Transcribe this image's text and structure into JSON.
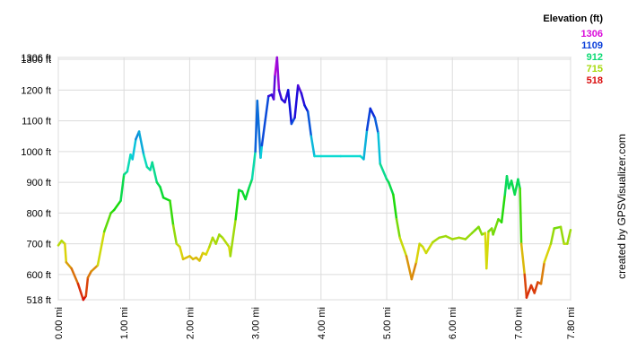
{
  "chart_data": {
    "type": "line",
    "credit": "created by GPSVisualizer.com",
    "legend": {
      "title": "Elevation (ft)",
      "values": [
        1306,
        1109,
        912,
        715,
        518
      ]
    },
    "color_range": [
      518,
      1306
    ],
    "grid": true,
    "xlim": [
      0,
      7.8
    ],
    "xticks": [
      {
        "value": 0,
        "label": "0.00 mi"
      },
      {
        "value": 1,
        "label": "1.00 mi"
      },
      {
        "value": 2,
        "label": "2.00 mi"
      },
      {
        "value": 3,
        "label": "3.00 mi"
      },
      {
        "value": 4,
        "label": "4.00 mi"
      },
      {
        "value": 5,
        "label": "5.00 mi"
      },
      {
        "value": 6,
        "label": "6.00 mi"
      },
      {
        "value": 7,
        "label": "7.00 mi"
      },
      {
        "value": 7.8,
        "label": "7.80 mi"
      }
    ],
    "ylim": [
      518,
      1306
    ],
    "yticks": [
      {
        "value": 518,
        "label": "518 ft"
      },
      {
        "value": 600,
        "label": "600 ft"
      },
      {
        "value": 700,
        "label": "700 ft"
      },
      {
        "value": 800,
        "label": "800 ft"
      },
      {
        "value": 900,
        "label": "900 ft"
      },
      {
        "value": 1000,
        "label": "1000 ft"
      },
      {
        "value": 1100,
        "label": "1100 ft"
      },
      {
        "value": 1200,
        "label": "1200 ft"
      },
      {
        "value": 1300,
        "label": "1300 ft"
      },
      {
        "value": 1306,
        "label": "1306 ft"
      }
    ],
    "x": [
      0,
      0.05,
      0.1,
      0.12,
      0.2,
      0.3,
      0.38,
      0.42,
      0.45,
      0.5,
      0.6,
      0.7,
      0.8,
      0.85,
      0.95,
      1.0,
      1.05,
      1.1,
      1.13,
      1.18,
      1.23,
      1.3,
      1.35,
      1.4,
      1.43,
      1.5,
      1.55,
      1.6,
      1.7,
      1.75,
      1.8,
      1.85,
      1.9,
      2.0,
      2.05,
      2.1,
      2.15,
      2.2,
      2.25,
      2.3,
      2.35,
      2.4,
      2.45,
      2.5,
      2.6,
      2.62,
      2.7,
      2.75,
      2.8,
      2.85,
      2.9,
      2.95,
      3.0,
      3.03,
      3.08,
      3.1,
      3.2,
      3.25,
      3.28,
      3.3,
      3.33,
      3.36,
      3.4,
      3.45,
      3.5,
      3.55,
      3.6,
      3.65,
      3.7,
      3.75,
      3.8,
      3.85,
      3.9,
      4.0,
      4.3,
      4.6,
      4.65,
      4.7,
      4.75,
      4.82,
      4.87,
      4.9,
      5.0,
      5.03,
      5.1,
      5.15,
      5.2,
      5.3,
      5.38,
      5.45,
      5.5,
      5.55,
      5.6,
      5.7,
      5.8,
      5.9,
      6.0,
      6.1,
      6.2,
      6.3,
      6.35,
      6.4,
      6.45,
      6.5,
      6.52,
      6.55,
      6.6,
      6.62,
      6.7,
      6.75,
      6.8,
      6.83,
      6.86,
      6.9,
      6.95,
      7.0,
      7.03,
      7.05,
      7.1,
      7.13,
      7.2,
      7.25,
      7.3,
      7.35,
      7.4,
      7.5,
      7.55,
      7.65,
      7.7,
      7.75,
      7.8
    ],
    "y": [
      695,
      710,
      700,
      640,
      620,
      570,
      518,
      530,
      590,
      610,
      630,
      740,
      800,
      810,
      840,
      925,
      935,
      990,
      975,
      1040,
      1065,
      990,
      950,
      940,
      965,
      900,
      885,
      850,
      840,
      760,
      700,
      690,
      650,
      660,
      650,
      655,
      645,
      670,
      665,
      690,
      720,
      700,
      730,
      720,
      690,
      660,
      780,
      875,
      870,
      845,
      880,
      910,
      1000,
      1165,
      980,
      1020,
      1180,
      1185,
      1170,
      1250,
      1306,
      1200,
      1170,
      1160,
      1200,
      1090,
      1110,
      1215,
      1190,
      1150,
      1130,
      1050,
      985,
      985,
      985,
      985,
      975,
      1070,
      1140,
      1110,
      1060,
      960,
      910,
      900,
      860,
      780,
      720,
      660,
      585,
      640,
      700,
      690,
      670,
      705,
      720,
      725,
      715,
      720,
      715,
      735,
      745,
      755,
      730,
      735,
      620,
      740,
      750,
      730,
      780,
      770,
      860,
      920,
      880,
      905,
      860,
      910,
      880,
      700,
      600,
      525,
      565,
      540,
      575,
      570,
      640,
      700,
      750,
      755,
      700,
      700,
      745
    ]
  }
}
